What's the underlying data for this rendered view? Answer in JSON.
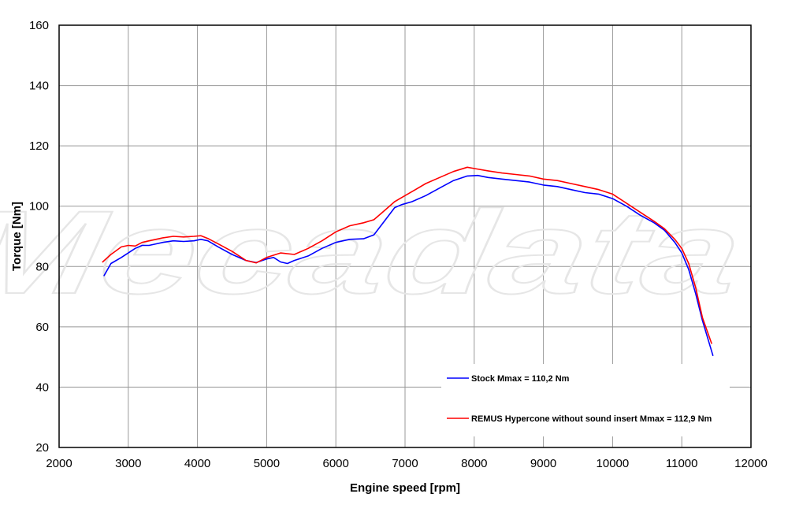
{
  "watermark": "Mecadata",
  "chart_data": {
    "type": "line",
    "xlabel": "Engine speed [rpm]",
    "ylabel": "Torque [Nm]",
    "xlim": [
      2000,
      12000
    ],
    "ylim": [
      20,
      160
    ],
    "xticks": [
      2000,
      3000,
      4000,
      5000,
      6000,
      7000,
      8000,
      9000,
      10000,
      11000,
      12000
    ],
    "yticks": [
      20,
      40,
      60,
      80,
      100,
      120,
      140,
      160
    ],
    "grid": true,
    "legend_position": "lower-right",
    "series": [
      {
        "name": "Stock Mmax = 110,2 Nm",
        "color": "#0000ff",
        "x": [
          2650,
          2750,
          2900,
          3000,
          3100,
          3200,
          3300,
          3400,
          3500,
          3650,
          3800,
          3950,
          4050,
          4150,
          4300,
          4500,
          4700,
          4850,
          5000,
          5100,
          5200,
          5300,
          5400,
          5600,
          5800,
          6000,
          6200,
          6400,
          6550,
          6700,
          6850,
          6950,
          7100,
          7300,
          7500,
          7700,
          7900,
          8050,
          8200,
          8400,
          8600,
          8800,
          9000,
          9200,
          9400,
          9600,
          9800,
          10000,
          10200,
          10400,
          10600,
          10750,
          10900,
          11000,
          11100,
          11200,
          11300,
          11450
        ],
        "y": [
          77,
          81,
          83,
          84.5,
          86,
          87,
          87,
          87.5,
          88,
          88.5,
          88.3,
          88.5,
          89,
          88.5,
          86.5,
          84,
          82,
          81.3,
          82.5,
          83,
          81.5,
          81,
          82,
          83.5,
          86,
          88,
          89,
          89.2,
          90.5,
          95,
          99.5,
          100.5,
          101.5,
          103.5,
          106,
          108.5,
          110,
          110.2,
          109.5,
          109,
          108.5,
          108,
          107,
          106.5,
          105.5,
          104.5,
          104,
          102.5,
          100,
          97,
          94.5,
          92,
          88,
          84.5,
          79,
          71,
          62,
          50.5
        ]
      },
      {
        "name": "REMUS Hypercone without sound insert Mmax = 112,9 Nm",
        "color": "#ff0000",
        "x": [
          2630,
          2750,
          2900,
          3000,
          3100,
          3200,
          3300,
          3400,
          3500,
          3650,
          3800,
          3950,
          4050,
          4150,
          4300,
          4500,
          4700,
          4850,
          5000,
          5200,
          5400,
          5600,
          5800,
          6000,
          6200,
          6400,
          6550,
          6700,
          6850,
          7000,
          7150,
          7300,
          7500,
          7700,
          7900,
          8000,
          8200,
          8400,
          8600,
          8800,
          9000,
          9200,
          9400,
          9600,
          9800,
          10000,
          10200,
          10400,
          10600,
          10750,
          10900,
          11000,
          11100,
          11200,
          11300,
          11430
        ],
        "y": [
          81.5,
          84,
          86.5,
          87,
          86.8,
          88,
          88.5,
          89,
          89.5,
          90,
          89.8,
          90,
          90.2,
          89.3,
          87.5,
          85,
          82,
          81.2,
          83,
          84.5,
          84,
          86,
          88.5,
          91.5,
          93.5,
          94.5,
          95.5,
          98.5,
          101.5,
          103.5,
          105.5,
          107.5,
          109.5,
          111.5,
          112.9,
          112.5,
          111.7,
          111,
          110.5,
          110,
          109,
          108.5,
          107.5,
          106.5,
          105.5,
          104,
          101,
          98,
          95,
          92.5,
          89,
          86,
          81,
          73,
          63,
          54.5
        ]
      }
    ]
  }
}
